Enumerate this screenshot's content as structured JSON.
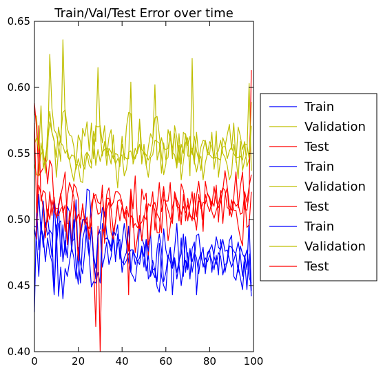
{
  "chart_data": {
    "type": "line",
    "title": "Train/Val/Test Error over time",
    "xlabel": "",
    "ylabel": "",
    "xlim": [
      0,
      100
    ],
    "ylim": [
      0.4,
      0.65
    ],
    "x_ticks": [
      0,
      20,
      40,
      60,
      80,
      100
    ],
    "x_tick_labels": [
      "0",
      "20",
      "40",
      "60",
      "80",
      "100"
    ],
    "y_ticks": [
      0.4,
      0.45,
      0.5,
      0.55,
      0.6,
      0.65
    ],
    "y_tick_labels": [
      "0.40",
      "0.45",
      "0.50",
      "0.55",
      "0.60",
      "0.65"
    ],
    "grid": false,
    "legend_position": "outside right",
    "x": [
      0,
      1,
      2,
      3,
      4,
      5,
      6,
      7,
      8,
      9,
      10,
      11,
      12,
      13,
      14,
      15,
      16,
      17,
      18,
      19,
      20,
      21,
      22,
      23,
      24,
      25,
      26,
      27,
      28,
      29,
      30,
      31,
      32,
      33,
      34,
      35,
      36,
      37,
      38,
      39,
      40,
      41,
      42,
      43,
      44,
      45,
      46,
      47,
      48,
      49,
      50,
      51,
      52,
      53,
      54,
      55,
      56,
      57,
      58,
      59,
      60,
      61,
      62,
      63,
      64,
      65,
      66,
      67,
      68,
      69,
      70,
      71,
      72,
      73,
      74,
      75,
      76,
      77,
      78,
      79,
      80,
      81,
      82,
      83,
      84,
      85,
      86,
      87,
      88,
      89,
      90,
      91,
      92,
      93,
      94,
      95,
      96,
      97,
      98,
      99
    ],
    "series": [
      {
        "name": "Train",
        "color": "#0000ff",
        "values": [
          0.43,
          0.509,
          0.477,
          0.494,
          0.488,
          0.468,
          0.486,
          0.474,
          0.468,
          0.443,
          0.496,
          0.442,
          0.464,
          0.44,
          0.463,
          0.457,
          0.468,
          0.479,
          0.471,
          0.455,
          0.479,
          0.467,
          0.459,
          0.476,
          0.498,
          0.473,
          0.449,
          0.453,
          0.452,
          0.46,
          0.452,
          0.497,
          0.485,
          0.486,
          0.484,
          0.479,
          0.493,
          0.488,
          0.496,
          0.47,
          0.483,
          0.497,
          0.483,
          0.468,
          0.46,
          0.477,
          0.466,
          0.472,
          0.495,
          0.486,
          0.481,
          0.461,
          0.473,
          0.457,
          0.462,
          0.463,
          0.453,
          0.482,
          0.457,
          0.45,
          0.446,
          0.471,
          0.478,
          0.443,
          0.471,
          0.46,
          0.469,
          0.474,
          0.489,
          0.46,
          0.475,
          0.455,
          0.478,
          0.483,
          0.443,
          0.469,
          0.475,
          0.464,
          0.471,
          0.468,
          0.473,
          0.469,
          0.462,
          0.473,
          0.458,
          0.485,
          0.475,
          0.46,
          0.47,
          0.484,
          0.488,
          0.457,
          0.454,
          0.465,
          0.456,
          0.447,
          0.468,
          0.447,
          0.474,
          0.442
        ]
      },
      {
        "name": "Validation",
        "color": "#bfbf00",
        "values": [
          0.58,
          0.578,
          0.538,
          0.549,
          0.553,
          0.535,
          0.568,
          0.582,
          0.566,
          0.56,
          0.532,
          0.553,
          0.563,
          0.581,
          0.583,
          0.569,
          0.564,
          0.563,
          0.555,
          0.538,
          0.546,
          0.539,
          0.569,
          0.563,
          0.574,
          0.552,
          0.573,
          0.546,
          0.571,
          0.57,
          0.571,
          0.558,
          0.571,
          0.548,
          0.562,
          0.568,
          0.548,
          0.542,
          0.546,
          0.543,
          0.563,
          0.545,
          0.57,
          0.581,
          0.58,
          0.548,
          0.546,
          0.552,
          0.574,
          0.542,
          0.557,
          0.541,
          0.555,
          0.565,
          0.561,
          0.577,
          0.578,
          0.564,
          0.548,
          0.534,
          0.542,
          0.568,
          0.561,
          0.554,
          0.565,
          0.541,
          0.565,
          0.542,
          0.566,
          0.564,
          0.548,
          0.548,
          0.554,
          0.542,
          0.566,
          0.548,
          0.537,
          0.553,
          0.56,
          0.552,
          0.549,
          0.547,
          0.546,
          0.567,
          0.532,
          0.546,
          0.555,
          0.555,
          0.564,
          0.572,
          0.553,
          0.573,
          0.543,
          0.57,
          0.563,
          0.553,
          0.559,
          0.54,
          0.546,
          0.589
        ]
      },
      {
        "name": "Test",
        "color": "#ff0000",
        "values": [
          0.588,
          0.568,
          0.533,
          0.536,
          0.539,
          0.548,
          0.527,
          0.545,
          0.54,
          0.51,
          0.508,
          0.509,
          0.518,
          0.526,
          0.536,
          0.497,
          0.497,
          0.511,
          0.527,
          0.524,
          0.516,
          0.487,
          0.498,
          0.502,
          0.496,
          0.493,
          0.512,
          0.517,
          0.519,
          0.513,
          0.512,
          0.519,
          0.502,
          0.519,
          0.524,
          0.51,
          0.513,
          0.521,
          0.521,
          0.519,
          0.513,
          0.501,
          0.51,
          0.502,
          0.522,
          0.494,
          0.497,
          0.494,
          0.496,
          0.498,
          0.503,
          0.5,
          0.512,
          0.51,
          0.521,
          0.492,
          0.509,
          0.528,
          0.506,
          0.515,
          0.514,
          0.514,
          0.528,
          0.499,
          0.519,
          0.51,
          0.509,
          0.496,
          0.519,
          0.499,
          0.516,
          0.502,
          0.502,
          0.5,
          0.518,
          0.529,
          0.513,
          0.491,
          0.529,
          0.519,
          0.517,
          0.51,
          0.525,
          0.514,
          0.509,
          0.513,
          0.522,
          0.537,
          0.525,
          0.51,
          0.507,
          0.517,
          0.536,
          0.509,
          0.525,
          0.536,
          0.508,
          0.507,
          0.52,
          0.613
        ]
      },
      {
        "name": "Train",
        "color": "#0000ff",
        "values": [
          0.495,
          0.494,
          0.519,
          0.489,
          0.514,
          0.494,
          0.502,
          0.487,
          0.472,
          0.515,
          0.484,
          0.512,
          0.472,
          0.496,
          0.473,
          0.51,
          0.506,
          0.483,
          0.485,
          0.515,
          0.469,
          0.452,
          0.485,
          0.493,
          0.523,
          0.522,
          0.498,
          0.473,
          0.463,
          0.488,
          0.493,
          0.509,
          0.505,
          0.489,
          0.482,
          0.476,
          0.492,
          0.468,
          0.489,
          0.475,
          0.468,
          0.466,
          0.469,
          0.474,
          0.477,
          0.477,
          0.472,
          0.469,
          0.466,
          0.478,
          0.464,
          0.485,
          0.455,
          0.459,
          0.469,
          0.461,
          0.449,
          0.445,
          0.466,
          0.493,
          0.477,
          0.47,
          0.479,
          0.465,
          0.478,
          0.497,
          0.466,
          0.486,
          0.457,
          0.487,
          0.463,
          0.478,
          0.46,
          0.47,
          0.488,
          0.489,
          0.472,
          0.479,
          0.459,
          0.473,
          0.477,
          0.46,
          0.474,
          0.487,
          0.479,
          0.477,
          0.485,
          0.476,
          0.477,
          0.47,
          0.464,
          0.469,
          0.475,
          0.483,
          0.473,
          0.457,
          0.473,
          0.462,
          0.5,
          0.446
        ]
      },
      {
        "name": "Validation",
        "color": "#bfbf00",
        "values": [
          0.542,
          0.534,
          0.533,
          0.558,
          0.547,
          0.542,
          0.546,
          0.625,
          0.584,
          0.568,
          0.565,
          0.557,
          0.544,
          0.636,
          0.578,
          0.548,
          0.545,
          0.536,
          0.529,
          0.542,
          0.541,
          0.529,
          0.528,
          0.548,
          0.551,
          0.548,
          0.542,
          0.561,
          0.541,
          0.553,
          0.544,
          0.551,
          0.553,
          0.554,
          0.549,
          0.542,
          0.564,
          0.542,
          0.524,
          0.547,
          0.549,
          0.533,
          0.538,
          0.551,
          0.552,
          0.545,
          0.554,
          0.55,
          0.576,
          0.553,
          0.551,
          0.541,
          0.532,
          0.547,
          0.549,
          0.56,
          0.559,
          0.558,
          0.535,
          0.558,
          0.545,
          0.547,
          0.567,
          0.551,
          0.549,
          0.539,
          0.556,
          0.53,
          0.544,
          0.558,
          0.562,
          0.533,
          0.622,
          0.544,
          0.536,
          0.545,
          0.548,
          0.53,
          0.543,
          0.55,
          0.559,
          0.555,
          0.547,
          0.547,
          0.546,
          0.545,
          0.562,
          0.557,
          0.546,
          0.552,
          0.555,
          0.55,
          0.547,
          0.531,
          0.559,
          0.537,
          0.545,
          0.55,
          0.603,
          0.537
        ]
      },
      {
        "name": "Test",
        "color": "#ff0000",
        "values": [
          0.492,
          0.485,
          0.571,
          0.514,
          0.522,
          0.52,
          0.498,
          0.521,
          0.503,
          0.517,
          0.501,
          0.51,
          0.52,
          0.505,
          0.511,
          0.481,
          0.506,
          0.476,
          0.514,
          0.5,
          0.469,
          0.496,
          0.512,
          0.496,
          0.502,
          0.485,
          0.501,
          0.468,
          0.419,
          0.495,
          0.4,
          0.493,
          0.49,
          0.516,
          0.516,
          0.508,
          0.491,
          0.498,
          0.514,
          0.515,
          0.511,
          0.505,
          0.498,
          0.476,
          0.503,
          0.501,
          0.475,
          0.486,
          0.503,
          0.484,
          0.5,
          0.512,
          0.473,
          0.494,
          0.511,
          0.507,
          0.49,
          0.49,
          0.514,
          0.525,
          0.507,
          0.484,
          0.495,
          0.509,
          0.517,
          0.514,
          0.499,
          0.527,
          0.522,
          0.511,
          0.499,
          0.511,
          0.521,
          0.502,
          0.492,
          0.514,
          0.513,
          0.5,
          0.519,
          0.511,
          0.506,
          0.514,
          0.51,
          0.526,
          0.498,
          0.522,
          0.497,
          0.518,
          0.524,
          0.503,
          0.515,
          0.507,
          0.507,
          0.495,
          0.486,
          0.48,
          0.518,
          0.494,
          0.496,
          0.521
        ]
      },
      {
        "name": "Train",
        "color": "#0000ff",
        "values": [
          0.493,
          0.483,
          0.457,
          0.498,
          0.479,
          0.498,
          0.488,
          0.492,
          0.489,
          0.445,
          0.48,
          0.497,
          0.499,
          0.468,
          0.484,
          0.471,
          0.499,
          0.476,
          0.5,
          0.465,
          0.451,
          0.49,
          0.5,
          0.5,
          0.483,
          0.472,
          0.494,
          0.469,
          0.455,
          0.488,
          0.491,
          0.464,
          0.472,
          0.483,
          0.466,
          0.472,
          0.486,
          0.47,
          0.482,
          0.485,
          0.46,
          0.471,
          0.475,
          0.495,
          0.46,
          0.457,
          0.453,
          0.468,
          0.471,
          0.48,
          0.472,
          0.485,
          0.476,
          0.49,
          0.46,
          0.456,
          0.478,
          0.489,
          0.477,
          0.453,
          0.46,
          0.473,
          0.468,
          0.463,
          0.471,
          0.455,
          0.466,
          0.45,
          0.464,
          0.469,
          0.462,
          0.478,
          0.468,
          0.475,
          0.471,
          0.459,
          0.472,
          0.466,
          0.463,
          0.475,
          0.477,
          0.481,
          0.472,
          0.466,
          0.475,
          0.472,
          0.458,
          0.466,
          0.467,
          0.48,
          0.479,
          0.476,
          0.474,
          0.46,
          0.48,
          0.474,
          0.471,
          0.477,
          0.456,
          0.452
        ]
      },
      {
        "name": "Validation",
        "color": "#bfbf00",
        "values": [
          0.557,
          0.562,
          0.552,
          0.586,
          0.539,
          0.548,
          0.558,
          0.574,
          0.566,
          0.559,
          0.547,
          0.57,
          0.558,
          0.556,
          0.55,
          0.553,
          0.545,
          0.549,
          0.548,
          0.543,
          0.564,
          0.559,
          0.542,
          0.538,
          0.55,
          0.541,
          0.539,
          0.567,
          0.559,
          0.615,
          0.565,
          0.548,
          0.559,
          0.541,
          0.554,
          0.551,
          0.546,
          0.55,
          0.549,
          0.54,
          0.557,
          0.548,
          0.546,
          0.546,
          0.604,
          0.542,
          0.548,
          0.551,
          0.557,
          0.546,
          0.551,
          0.549,
          0.545,
          0.549,
          0.559,
          0.602,
          0.545,
          0.552,
          0.562,
          0.554,
          0.553,
          0.554,
          0.564,
          0.546,
          0.571,
          0.562,
          0.543,
          0.557,
          0.55,
          0.565,
          0.556,
          0.563,
          0.549,
          0.563,
          0.552,
          0.545,
          0.555,
          0.56,
          0.559,
          0.549,
          0.55,
          0.566,
          0.538,
          0.55,
          0.552,
          0.56,
          0.55,
          0.547,
          0.541,
          0.53,
          0.535,
          0.557,
          0.547,
          0.547,
          0.548,
          0.545,
          0.557,
          0.557,
          0.546,
          0.571
        ]
      },
      {
        "name": "Test",
        "color": "#ff0000",
        "values": [
          0.573,
          0.505,
          0.526,
          0.519,
          0.509,
          0.486,
          0.508,
          0.5,
          0.515,
          0.506,
          0.503,
          0.503,
          0.508,
          0.51,
          0.491,
          0.517,
          0.528,
          0.523,
          0.517,
          0.498,
          0.504,
          0.5,
          0.51,
          0.5,
          0.496,
          0.485,
          0.501,
          0.52,
          0.513,
          0.504,
          0.505,
          0.526,
          0.482,
          0.508,
          0.513,
          0.49,
          0.485,
          0.499,
          0.511,
          0.499,
          0.51,
          0.501,
          0.507,
          0.443,
          0.523,
          0.508,
          0.533,
          0.499,
          0.493,
          0.523,
          0.515,
          0.52,
          0.481,
          0.489,
          0.51,
          0.513,
          0.504,
          0.501,
          0.49,
          0.521,
          0.512,
          0.507,
          0.501,
          0.497,
          0.521,
          0.515,
          0.511,
          0.504,
          0.51,
          0.505,
          0.511,
          0.504,
          0.499,
          0.52,
          0.502,
          0.519,
          0.508,
          0.513,
          0.512,
          0.52,
          0.515,
          0.506,
          0.501,
          0.507,
          0.512,
          0.519,
          0.524,
          0.522,
          0.509,
          0.508,
          0.502,
          0.514,
          0.51,
          0.512,
          0.504,
          0.505,
          0.521,
          0.513,
          0.525,
          0.534
        ]
      }
    ]
  }
}
